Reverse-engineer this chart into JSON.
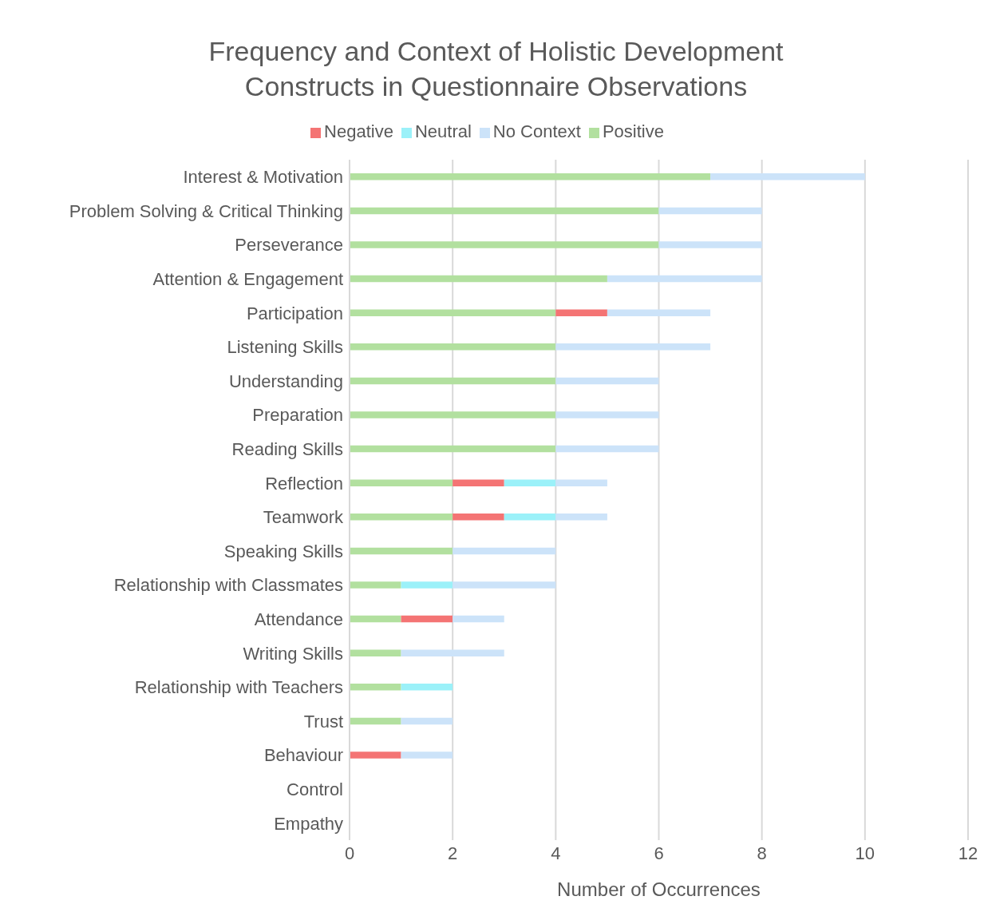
{
  "chart_data": {
    "type": "bar",
    "orientation": "horizontal",
    "stacked": true,
    "title": "Frequency and Context of Holistic Development Constructs in Questionnaire Observations",
    "xlabel": "Number of Occurrences",
    "categories": [
      "Interest & Motivation",
      "Problem Solving & Critical Thinking",
      "Perseverance",
      "Attention & Engagement",
      "Participation",
      "Listening Skills",
      "Understanding",
      "Preparation",
      "Reading Skills",
      "Reflection",
      "Teamwork",
      "Speaking Skills",
      "Relationship with Classmates",
      "Attendance",
      "Writing Skills",
      "Relationship with Teachers",
      "Trust",
      "Behaviour",
      "Control",
      "Empathy"
    ],
    "series": [
      {
        "name": "Positive",
        "color": "#b2e09f",
        "values": [
          7,
          6,
          6,
          5,
          4,
          4,
          4,
          4,
          4,
          2,
          2,
          2,
          1,
          1,
          1,
          1,
          1,
          0,
          0,
          0
        ]
      },
      {
        "name": "Negative",
        "color": "#f47474",
        "values": [
          0,
          0,
          0,
          0,
          1,
          0,
          0,
          0,
          0,
          1,
          1,
          0,
          0,
          1,
          0,
          0,
          0,
          1,
          0,
          0
        ]
      },
      {
        "name": "Neutral",
        "color": "#9bf1f9",
        "values": [
          0,
          0,
          0,
          0,
          0,
          0,
          0,
          0,
          0,
          1,
          1,
          0,
          1,
          0,
          0,
          1,
          0,
          0,
          0,
          0
        ]
      },
      {
        "name": "No Context",
        "color": "#cce3f9",
        "values": [
          3,
          2,
          2,
          3,
          2,
          3,
          2,
          2,
          2,
          1,
          1,
          2,
          2,
          1,
          2,
          0,
          1,
          1,
          0,
          0
        ]
      }
    ],
    "xlim": [
      0,
      12
    ],
    "xticks": [
      0,
      2,
      4,
      6,
      8,
      10,
      12
    ],
    "grid": "x",
    "legend": "top"
  }
}
